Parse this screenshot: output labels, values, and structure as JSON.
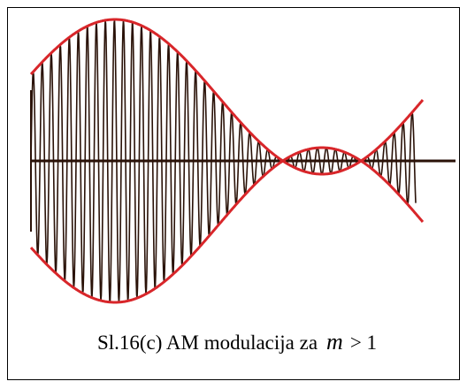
{
  "caption": {
    "text": "Sl.16(c) AM modulacija za",
    "variable": "m",
    "relation": "> 1"
  }
}
